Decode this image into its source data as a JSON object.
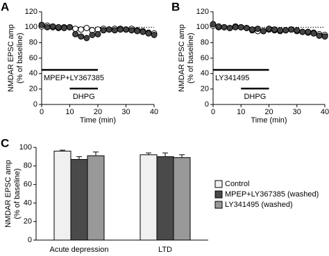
{
  "chart_data": [
    {
      "type": "scatter",
      "panel": "A",
      "ylabel": [
        "NMDAR EPSC amp",
        "(% of baseline)"
      ],
      "xlabel": "Time (min)",
      "x": [
        0,
        2,
        4,
        6,
        8,
        10,
        12,
        14,
        16,
        18,
        20,
        22,
        24,
        26,
        28,
        30,
        32,
        34,
        36,
        38,
        40
      ],
      "series": [
        {
          "color": "#ffffff",
          "values": [
            101,
            102,
            100,
            99,
            100,
            100,
            98,
            97,
            99,
            96,
            97,
            98,
            97,
            98,
            98,
            97,
            98,
            96,
            95,
            93,
            92
          ]
        },
        {
          "color": "#444444",
          "values": [
            103,
            100,
            101,
            100,
            99,
            100,
            91,
            88,
            86,
            90,
            91,
            96,
            97,
            96,
            97,
            97,
            96,
            95,
            94,
            92,
            90
          ]
        }
      ],
      "hline": 100,
      "spans": [
        {
          "label": "MPEP+LY367385",
          "start": 0,
          "end": 20
        },
        {
          "label": "DHPG",
          "start": 10,
          "end": 20
        }
      ],
      "xlim": [
        0,
        40
      ],
      "xticks": [
        0,
        10,
        20,
        30,
        40
      ],
      "ylim": [
        0,
        120
      ],
      "yticks": [
        0,
        20,
        40,
        60,
        80,
        100,
        120
      ]
    },
    {
      "type": "scatter",
      "panel": "B",
      "ylabel": [
        "NMDAR EPSC amp",
        "(% of baseline)"
      ],
      "xlabel": "Time (min)",
      "x": [
        0,
        2,
        4,
        6,
        8,
        10,
        12,
        14,
        16,
        18,
        20,
        22,
        24,
        26,
        28,
        30,
        32,
        34,
        36,
        38,
        40
      ],
      "series": [
        {
          "color": "#ffffff",
          "values": [
            102,
            100,
            100,
            99,
            101,
            100,
            99,
            96,
            95,
            95,
            97,
            96,
            95,
            96,
            97,
            95,
            94,
            93,
            93,
            91,
            90
          ]
        },
        {
          "color": "#444444",
          "values": [
            104,
            101,
            100,
            99,
            100,
            100,
            99,
            97,
            98,
            95,
            98,
            97,
            96,
            96,
            97,
            96,
            94,
            94,
            92,
            89,
            88
          ]
        }
      ],
      "hline": 100,
      "spans": [
        {
          "label": "LY341495",
          "start": 0,
          "end": 20
        },
        {
          "label": "DHPG",
          "start": 10,
          "end": 20
        }
      ],
      "xlim": [
        0,
        40
      ],
      "xticks": [
        0,
        10,
        20,
        30,
        40
      ],
      "ylim": [
        0,
        120
      ],
      "yticks": [
        0,
        20,
        40,
        60,
        80,
        100,
        120
      ]
    },
    {
      "type": "bar",
      "panel": "C",
      "ylabel": [
        "NMDAR EPSC amp",
        "(% of baseline)"
      ],
      "categories": [
        "Acute depression",
        "LTD"
      ],
      "series": [
        {
          "name": "Control",
          "color": "#f0f0f0",
          "values": [
            96,
            92
          ],
          "errors": [
            1,
            2
          ]
        },
        {
          "name": "MPEP+LY367385 (washed)",
          "color": "#4a4a4a",
          "values": [
            87,
            90
          ],
          "errors": [
            3,
            4
          ]
        },
        {
          "name": "LY341495 (washed)",
          "color": "#999999",
          "values": [
            91,
            89
          ],
          "errors": [
            4,
            3
          ]
        }
      ],
      "ylim": [
        0,
        100
      ],
      "yticks": [
        0,
        20,
        40,
        60,
        80,
        100
      ]
    }
  ]
}
